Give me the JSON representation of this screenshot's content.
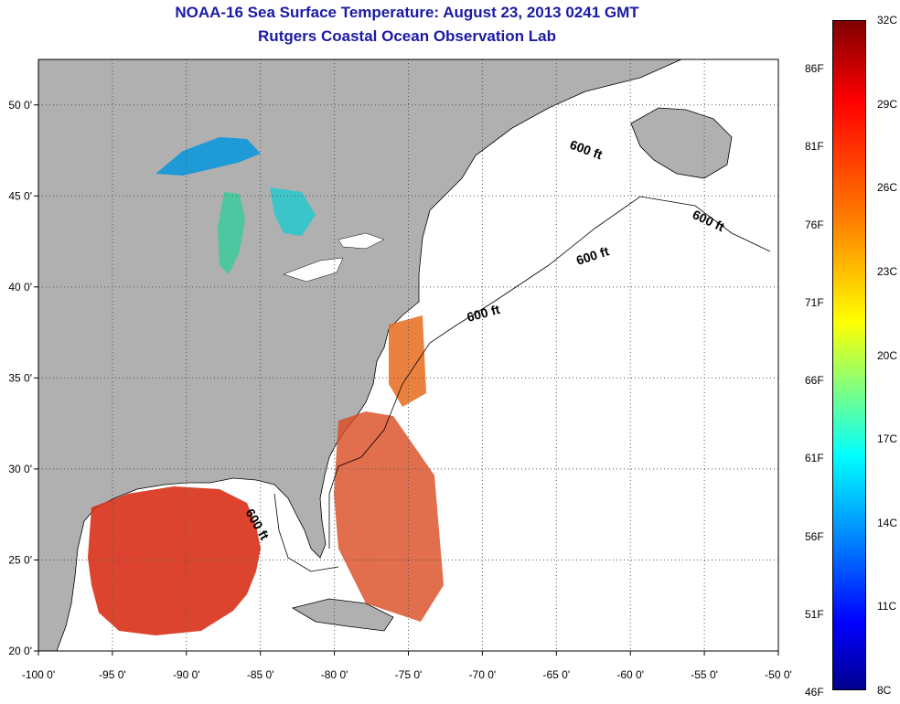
{
  "title": {
    "line1": "NOAA-16 Sea Surface Temperature:  August 23, 2013 0241 GMT",
    "line2": "Rutgers Coastal Ocean Observation Lab"
  },
  "map": {
    "extent": {
      "lon": [
        -100,
        -50
      ],
      "lat": [
        20,
        52.5
      ]
    },
    "lon_ticks": [
      {
        "value": -100,
        "label": "-100 0'"
      },
      {
        "value": -95,
        "label": "-95 0'"
      },
      {
        "value": -90,
        "label": "-90 0'"
      },
      {
        "value": -85,
        "label": "-85 0'"
      },
      {
        "value": -80,
        "label": "-80 0'"
      },
      {
        "value": -75,
        "label": "-75 0'"
      },
      {
        "value": -70,
        "label": "-70 0'"
      },
      {
        "value": -65,
        "label": "-65 0'"
      },
      {
        "value": -60,
        "label": "-60 0'"
      },
      {
        "value": -55,
        "label": "-55 0'"
      },
      {
        "value": -50,
        "label": "-50 0'"
      }
    ],
    "lat_ticks": [
      {
        "value": 20,
        "label": "20 0'"
      },
      {
        "value": 25,
        "label": "25 0'"
      },
      {
        "value": 30,
        "label": "30 0'"
      },
      {
        "value": 35,
        "label": "35 0'"
      },
      {
        "value": 40,
        "label": "40 0'"
      },
      {
        "value": 45,
        "label": "45 0'"
      },
      {
        "value": 50,
        "label": "50 0'"
      }
    ],
    "depth_labels": [
      "600 ft",
      "600 ft",
      "600 ft",
      "600 ft",
      "600 ft"
    ],
    "land_color": "#b0b0b0",
    "grid": "dotted"
  },
  "colorbar": {
    "celsius": [
      "32C",
      "29C",
      "26C",
      "23C",
      "20C",
      "17C",
      "14C",
      "11C",
      "8C"
    ],
    "fahrenheit": [
      "86F",
      "81F",
      "76F",
      "71F",
      "66F",
      "61F",
      "56F",
      "51F",
      "46F"
    ],
    "colormap": "jet",
    "range_c": [
      8,
      32
    ]
  }
}
